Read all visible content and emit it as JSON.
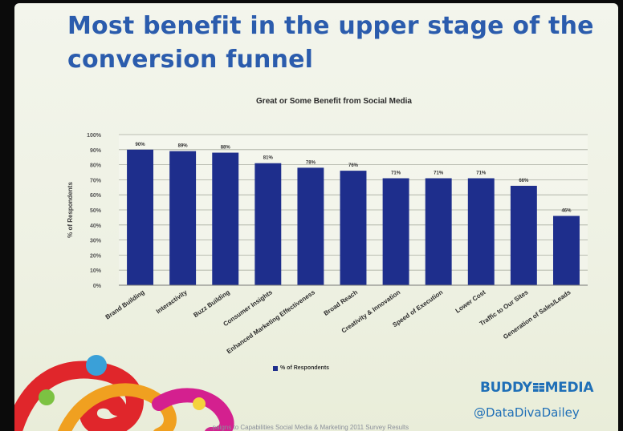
{
  "slide": {
    "title": "Most benefit in the upper stage of the conversion funnel",
    "brand": "BUDDY",
    "brand_suffix": "MEDIA",
    "handle": "@DataDivaDailey",
    "footer": "...paigns to Capabilities Social Media & Marketing 2011 Survey Results"
  },
  "chart_data": {
    "type": "bar",
    "title": "Great or Some Benefit from Social Media",
    "ylabel": "% of Respondents",
    "xlabel": "",
    "ylim": [
      0,
      100
    ],
    "yticks": [
      0,
      10,
      20,
      30,
      40,
      50,
      60,
      70,
      80,
      90,
      100
    ],
    "grid": true,
    "legend": "bottom",
    "categories": [
      "Brand Building",
      "Interactivity",
      "Buzz Building",
      "Consumer Insights",
      "Enhanced Marketing Effectiveness",
      "Broad Reach",
      "Creativity & Innovation",
      "Speed of Execution",
      "Lower Cost",
      "Traffic to Our Sites",
      "Generation of Sales/Leads"
    ],
    "series": [
      {
        "name": "% of Respondents",
        "color": "#1e2e8c",
        "values": [
          90,
          89,
          88,
          81,
          78,
          76,
          71,
          71,
          71,
          66,
          46
        ]
      }
    ]
  }
}
